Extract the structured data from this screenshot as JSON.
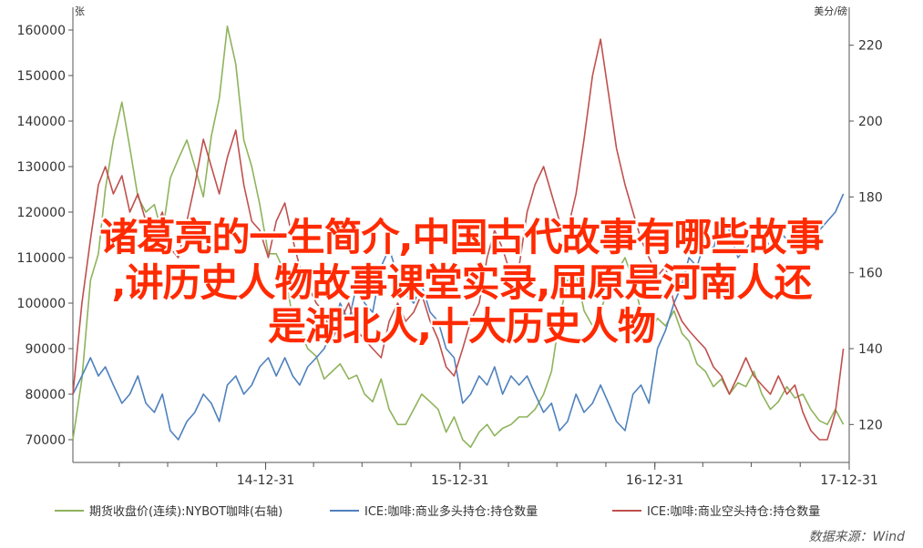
{
  "overlay_title": {
    "line1": "诸葛亮的一生简介,中国古代故事有哪些故事",
    "line2": ",讲历史人物故事课堂实录,屈原是河南人还",
    "line3": "是湖北人,十大历史人物"
  },
  "source_label": "数据来源：Wind",
  "chart_data": {
    "type": "line",
    "left_unit": "张",
    "right_unit": "美分/磅",
    "x_tick_labels": [
      "14-12-31",
      "15-12-31",
      "16-12-31",
      "17-12-31"
    ],
    "x_range": [
      "2014-01-03",
      "2017-12-31"
    ],
    "ylim_left": [
      65000,
      165000
    ],
    "ylim_right": [
      110,
      230
    ],
    "y_left_ticks": [
      "70000",
      "80000",
      "90000",
      "100000",
      "110000",
      "120000",
      "130000",
      "140000",
      "150000",
      "160000"
    ],
    "y_right_ticks": [
      "120",
      "140",
      "160",
      "180",
      "200",
      "220"
    ],
    "series": [
      {
        "name": "期货收盘价(连续):NYBOT咖啡(右轴)",
        "axis": "right",
        "color": "#8fb35c",
        "x": [
          "2014-01-03",
          "2014-01-20",
          "2014-02-05",
          "2014-02-20",
          "2014-03-05",
          "2014-03-20",
          "2014-04-05",
          "2014-04-20",
          "2014-05-05",
          "2014-05-20",
          "2014-06-05",
          "2014-06-20",
          "2014-07-05",
          "2014-07-20",
          "2014-08-05",
          "2014-08-20",
          "2014-09-05",
          "2014-09-20",
          "2014-10-05",
          "2014-10-20",
          "2014-11-05",
          "2014-11-20",
          "2014-12-05",
          "2014-12-20",
          "2015-01-05",
          "2015-01-20",
          "2015-02-05",
          "2015-02-20",
          "2015-03-05",
          "2015-03-20",
          "2015-04-05",
          "2015-04-20",
          "2015-05-05",
          "2015-05-20",
          "2015-06-05",
          "2015-06-20",
          "2015-07-05",
          "2015-07-20",
          "2015-08-05",
          "2015-08-20",
          "2015-09-05",
          "2015-09-20",
          "2015-10-05",
          "2015-10-20",
          "2015-11-05",
          "2015-11-20",
          "2015-12-05",
          "2015-12-20",
          "2016-01-05",
          "2016-01-20",
          "2016-02-05",
          "2016-02-20",
          "2016-03-05",
          "2016-03-20",
          "2016-04-05",
          "2016-04-20",
          "2016-05-05",
          "2016-05-20",
          "2016-06-05",
          "2016-06-20",
          "2016-07-05",
          "2016-07-20",
          "2016-08-05",
          "2016-08-20",
          "2016-09-05",
          "2016-09-20",
          "2016-10-05",
          "2016-10-20",
          "2016-11-05",
          "2016-11-20",
          "2016-12-05",
          "2016-12-20",
          "2017-01-05",
          "2017-01-20",
          "2017-02-05",
          "2017-02-20",
          "2017-03-05",
          "2017-03-20",
          "2017-04-05",
          "2017-04-20",
          "2017-05-05",
          "2017-05-20",
          "2017-06-05",
          "2017-06-20",
          "2017-07-05",
          "2017-07-20",
          "2017-08-05",
          "2017-08-20",
          "2017-09-05",
          "2017-09-20",
          "2017-10-05",
          "2017-10-20",
          "2017-11-05",
          "2017-11-20",
          "2017-12-05",
          "2017-12-20"
        ],
        "values": [
          116,
          132,
          158,
          165,
          182,
          195,
          205,
          193,
          180,
          176,
          178,
          170,
          185,
          190,
          195,
          188,
          180,
          196,
          206,
          225,
          215,
          195,
          188,
          178,
          165,
          165,
          160,
          148,
          145,
          140,
          138,
          132,
          134,
          136,
          132,
          133,
          128,
          126,
          132,
          124,
          120,
          120,
          124,
          128,
          126,
          124,
          118,
          122,
          116,
          114,
          118,
          120,
          117,
          119,
          120,
          122,
          122,
          124,
          128,
          134,
          148,
          158,
          160,
          150,
          146,
          150,
          156,
          160,
          164,
          158,
          150,
          144,
          148,
          146,
          150,
          144,
          142,
          136,
          134,
          130,
          132,
          128,
          131,
          130,
          134,
          128,
          124,
          126,
          130,
          127,
          128,
          124,
          121,
          120,
          124,
          120
        ]
      },
      {
        "name": "ICE:咖啡:商业多头持仓:持仓数量",
        "axis": "left",
        "color": "#4f81bd",
        "x": [
          "2014-01-03",
          "2014-01-20",
          "2014-02-05",
          "2014-02-20",
          "2014-03-05",
          "2014-03-20",
          "2014-04-05",
          "2014-04-20",
          "2014-05-05",
          "2014-05-20",
          "2014-06-05",
          "2014-06-20",
          "2014-07-05",
          "2014-07-20",
          "2014-08-05",
          "2014-08-20",
          "2014-09-05",
          "2014-09-20",
          "2014-10-05",
          "2014-10-20",
          "2014-11-05",
          "2014-11-20",
          "2014-12-05",
          "2014-12-20",
          "2015-01-05",
          "2015-01-20",
          "2015-02-05",
          "2015-02-20",
          "2015-03-05",
          "2015-03-20",
          "2015-04-05",
          "2015-04-20",
          "2015-05-05",
          "2015-05-20",
          "2015-06-05",
          "2015-06-20",
          "2015-07-05",
          "2015-07-20",
          "2015-08-05",
          "2015-08-20",
          "2015-09-05",
          "2015-09-20",
          "2015-10-05",
          "2015-10-20",
          "2015-11-05",
          "2015-11-20",
          "2015-12-05",
          "2015-12-20",
          "2016-01-05",
          "2016-01-20",
          "2016-02-05",
          "2016-02-20",
          "2016-03-05",
          "2016-03-20",
          "2016-04-05",
          "2016-04-20",
          "2016-05-05",
          "2016-05-20",
          "2016-06-05",
          "2016-06-20",
          "2016-07-05",
          "2016-07-20",
          "2016-08-05",
          "2016-08-20",
          "2016-09-05",
          "2016-09-20",
          "2016-10-05",
          "2016-10-20",
          "2016-11-05",
          "2016-11-20",
          "2016-12-05",
          "2016-12-20",
          "2017-01-05",
          "2017-01-20",
          "2017-02-05",
          "2017-02-20",
          "2017-03-05",
          "2017-03-20",
          "2017-04-05",
          "2017-04-20",
          "2017-05-05",
          "2017-05-20",
          "2017-06-05",
          "2017-06-20",
          "2017-07-05",
          "2017-07-20",
          "2017-08-05",
          "2017-08-20",
          "2017-09-05",
          "2017-09-20",
          "2017-10-05",
          "2017-10-20",
          "2017-11-05",
          "2017-11-20",
          "2017-12-05",
          "2017-12-20"
        ],
        "values": [
          80000,
          84000,
          88000,
          84000,
          86000,
          82000,
          78000,
          80000,
          84000,
          78000,
          76000,
          80000,
          72000,
          70000,
          74000,
          76000,
          80000,
          78000,
          74000,
          82000,
          84000,
          80000,
          82000,
          86000,
          88000,
          84000,
          88000,
          84000,
          82000,
          86000,
          88000,
          90000,
          94000,
          100000,
          96000,
          104000,
          100000,
          98000,
          108000,
          112000,
          106000,
          102000,
          100000,
          104000,
          98000,
          96000,
          90000,
          88000,
          78000,
          80000,
          84000,
          82000,
          86000,
          80000,
          84000,
          82000,
          84000,
          80000,
          76000,
          78000,
          72000,
          74000,
          80000,
          76000,
          78000,
          82000,
          78000,
          74000,
          72000,
          80000,
          82000,
          78000,
          90000,
          94000,
          100000,
          104000,
          110000,
          108000,
          114000,
          112000,
          118000,
          116000,
          110000,
          112000,
          114000,
          116000,
          112000,
          116000,
          114000,
          112000,
          118000,
          114000,
          116000,
          118000,
          120000,
          124000
        ]
      },
      {
        "name": "ICE:咖啡:商业空头持仓:持仓数量",
        "axis": "left",
        "color": "#c0504d",
        "x": [
          "2014-01-03",
          "2014-01-20",
          "2014-02-05",
          "2014-02-20",
          "2014-03-05",
          "2014-03-20",
          "2014-04-05",
          "2014-04-20",
          "2014-05-05",
          "2014-05-20",
          "2014-06-05",
          "2014-06-20",
          "2014-07-05",
          "2014-07-20",
          "2014-08-05",
          "2014-08-20",
          "2014-09-05",
          "2014-09-20",
          "2014-10-05",
          "2014-10-20",
          "2014-11-05",
          "2014-11-20",
          "2014-12-05",
          "2014-12-20",
          "2015-01-05",
          "2015-01-20",
          "2015-02-05",
          "2015-02-20",
          "2015-03-05",
          "2015-03-20",
          "2015-04-05",
          "2015-04-20",
          "2015-05-05",
          "2015-05-20",
          "2015-06-05",
          "2015-06-20",
          "2015-07-05",
          "2015-07-20",
          "2015-08-05",
          "2015-08-20",
          "2015-09-05",
          "2015-09-20",
          "2015-10-05",
          "2015-10-20",
          "2015-11-05",
          "2015-11-20",
          "2015-12-05",
          "2015-12-20",
          "2016-01-05",
          "2016-01-20",
          "2016-02-05",
          "2016-02-20",
          "2016-03-05",
          "2016-03-20",
          "2016-04-05",
          "2016-04-20",
          "2016-05-05",
          "2016-05-20",
          "2016-06-05",
          "2016-06-20",
          "2016-07-05",
          "2016-07-20",
          "2016-08-05",
          "2016-08-20",
          "2016-09-05",
          "2016-09-20",
          "2016-10-05",
          "2016-10-20",
          "2016-11-05",
          "2016-11-20",
          "2016-12-05",
          "2016-12-20",
          "2017-01-05",
          "2017-01-20",
          "2017-02-05",
          "2017-02-20",
          "2017-03-05",
          "2017-03-20",
          "2017-04-05",
          "2017-04-20",
          "2017-05-05",
          "2017-05-20",
          "2017-06-05",
          "2017-06-20",
          "2017-07-05",
          "2017-07-20",
          "2017-08-05",
          "2017-08-20",
          "2017-09-05",
          "2017-09-20",
          "2017-10-05",
          "2017-10-20",
          "2017-11-05",
          "2017-11-20",
          "2017-12-05",
          "2017-12-20"
        ],
        "values": [
          80000,
          100000,
          114000,
          126000,
          130000,
          124000,
          128000,
          120000,
          124000,
          118000,
          116000,
          120000,
          112000,
          110000,
          118000,
          126000,
          136000,
          130000,
          124000,
          132000,
          138000,
          126000,
          118000,
          116000,
          110000,
          118000,
          122000,
          114000,
          108000,
          104000,
          100000,
          98000,
          92000,
          96000,
          100000,
          94000,
          92000,
          90000,
          88000,
          96000,
          100000,
          96000,
          98000,
          102000,
          96000,
          92000,
          86000,
          84000,
          90000,
          96000,
          100000,
          110000,
          116000,
          112000,
          106000,
          108000,
          120000,
          126000,
          130000,
          124000,
          118000,
          116000,
          124000,
          136000,
          150000,
          158000,
          146000,
          134000,
          126000,
          120000,
          114000,
          110000,
          106000,
          108000,
          100000,
          96000,
          94000,
          92000,
          90000,
          86000,
          84000,
          80000,
          84000,
          88000,
          84000,
          82000,
          80000,
          84000,
          80000,
          82000,
          76000,
          72000,
          70000,
          70000,
          76000,
          90000
        ]
      }
    ]
  }
}
